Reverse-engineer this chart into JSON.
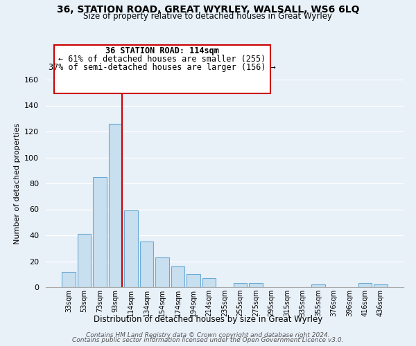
{
  "title": "36, STATION ROAD, GREAT WYRLEY, WALSALL, WS6 6LQ",
  "subtitle": "Size of property relative to detached houses in Great Wyrley",
  "xlabel": "Distribution of detached houses by size in Great Wyrley",
  "ylabel": "Number of detached properties",
  "bar_labels": [
    "33sqm",
    "53sqm",
    "73sqm",
    "93sqm",
    "114sqm",
    "134sqm",
    "154sqm",
    "174sqm",
    "194sqm",
    "214sqm",
    "235sqm",
    "255sqm",
    "275sqm",
    "295sqm",
    "315sqm",
    "335sqm",
    "355sqm",
    "376sqm",
    "396sqm",
    "416sqm",
    "436sqm"
  ],
  "bar_values": [
    12,
    41,
    85,
    126,
    59,
    35,
    23,
    16,
    10,
    7,
    0,
    3,
    3,
    0,
    0,
    0,
    2,
    0,
    0,
    3,
    2
  ],
  "redline_index": 3,
  "bar_color_normal": "#c8dff0",
  "bar_color_edge": "#6aaad4",
  "redline_color": "#cc0000",
  "ylim": [
    0,
    160
  ],
  "yticks": [
    0,
    20,
    40,
    60,
    80,
    100,
    120,
    140,
    160
  ],
  "annotation_title": "36 STATION ROAD: 114sqm",
  "annotation_line1": "← 61% of detached houses are smaller (255)",
  "annotation_line2": "37% of semi-detached houses are larger (156) →",
  "annotation_box_facecolor": "#ffffff",
  "annotation_box_edgecolor": "#cc0000",
  "footer_line1": "Contains HM Land Registry data © Crown copyright and database right 2024.",
  "footer_line2": "Contains public sector information licensed under the Open Government Licence v3.0.",
  "background_color": "#e8f0f8",
  "grid_color": "#ffffff"
}
